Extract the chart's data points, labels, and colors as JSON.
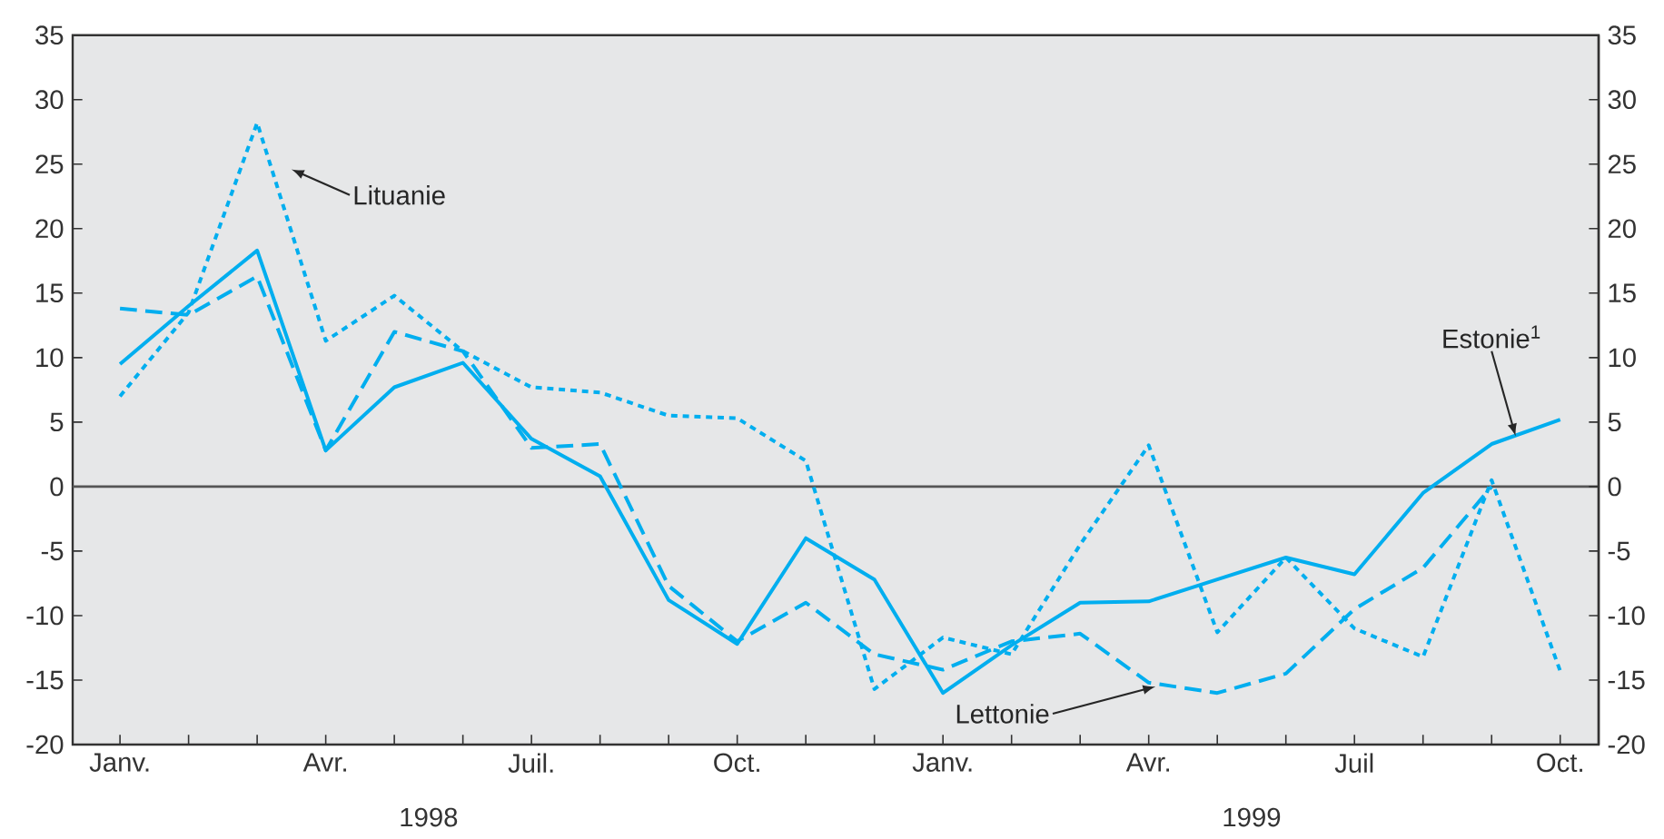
{
  "chart_data": {
    "type": "line",
    "categories": [
      "Janv.",
      null,
      null,
      "Avr.",
      null,
      null,
      "Juil.",
      null,
      null,
      "Oct.",
      null,
      null,
      "Janv.",
      null,
      null,
      "Avr.",
      null,
      null,
      "Juil",
      null,
      null,
      "Oct."
    ],
    "series": [
      {
        "name": "Estonie$^{1}$",
        "color": "#00aeef",
        "line_style": "solid",
        "values": [
          9.5,
          14,
          18.3,
          2.8,
          7.7,
          9.6,
          3.7,
          0.8,
          -8.8,
          -12.2,
          -4,
          -7.2,
          -16,
          -12.3,
          -9,
          -8.9,
          -7.2,
          -5.5,
          -6.8,
          -0.5,
          3.3,
          5.2
        ]
      },
      {
        "name": "Lettonie",
        "color": "#00aeef",
        "line_style": "dashed",
        "values": [
          13.8,
          13.3,
          16.3,
          2.8,
          12,
          10.5,
          3.0,
          3.3,
          -7.7,
          -12,
          -9,
          -13,
          -14.2,
          -12,
          -11.4,
          -15.2,
          -16,
          -14.5,
          -9.5,
          -6.3,
          0,
          null
        ]
      },
      {
        "name": "Lituanie",
        "color": "#00aeef",
        "line_style": "dotted",
        "values": [
          7,
          13.5,
          28.2,
          11.3,
          14.8,
          10.5,
          7.7,
          7.3,
          5.5,
          5.3,
          2.0,
          -15.7,
          -11.7,
          -13,
          -4.5,
          3.2,
          -11.3,
          -5.5,
          -11,
          -13.2,
          0.5,
          -14.3
        ]
      }
    ],
    "ylim": [
      -20,
      35
    ],
    "yticks": [
      -20,
      -15,
      -10,
      -5,
      0,
      5,
      10,
      15,
      20,
      25,
      30,
      35
    ],
    "y2lim": [
      -20,
      35
    ],
    "y2ticks": [
      -20,
      -15,
      -10,
      -5,
      0,
      5,
      10,
      15,
      20,
      25,
      30,
      35
    ],
    "ref_lines": [
      {
        "axis": "y",
        "value": 0,
        "color": "#555555"
      }
    ],
    "annotations": [
      "1998",
      "1999"
    ]
  }
}
